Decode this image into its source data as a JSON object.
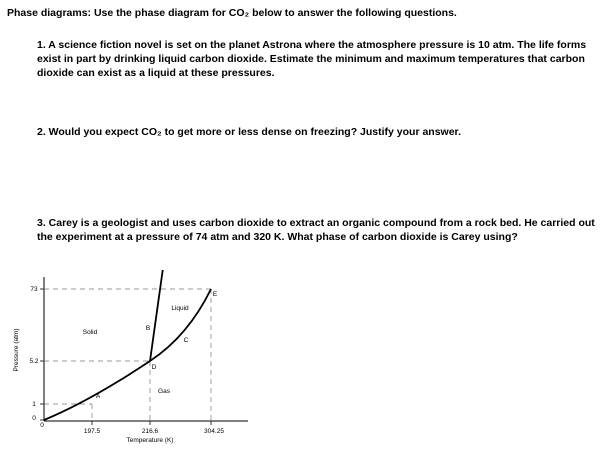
{
  "heading": "Phase diagrams:  Use the phase diagram for CO₂ below to answer the following questions.",
  "questions": [
    {
      "text": "1. A science fiction novel is set on the planet Astrona where the atmosphere pressure is 10 atm. The life forms exist in part by drinking liquid carbon dioxide.  Estimate the minimum and maximum temperatures that carbon dioxide can exist as a liquid at these pressures."
    },
    {
      "text": "2. Would you expect CO₂ to get more or less dense on freezing?  Justify your answer."
    },
    {
      "text": "3. Carey is a geologist and uses carbon dioxide to extract an organic compound from a rock bed. He carried out the experiment at a pressure of 74 atm and 320 K. What phase of carbon dioxide is Carey using?"
    }
  ],
  "diagram": {
    "y_axis_label": "Pressure (atm)",
    "x_axis_label": "Temperature (K)",
    "y_ticks": [
      "73",
      "5.2",
      "1",
      "0"
    ],
    "x_ticks": [
      "0",
      "197.5",
      "216.6",
      "304.25"
    ],
    "regions": {
      "solid": "Solid",
      "liquid": "Liquid",
      "gas": "Gas"
    },
    "points": {
      "a": "A",
      "b": "B",
      "c": "C",
      "d": "D",
      "e": "E"
    },
    "line_color": "#000000",
    "guide_color": "#777777"
  }
}
